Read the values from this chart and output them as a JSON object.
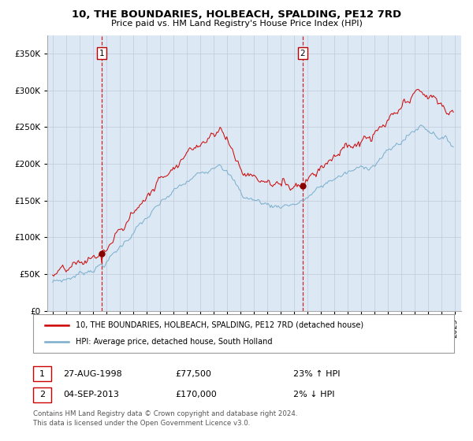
{
  "title": "10, THE BOUNDARIES, HOLBEACH, SPALDING, PE12 7RD",
  "subtitle": "Price paid vs. HM Land Registry's House Price Index (HPI)",
  "background_color": "#dce9f5",
  "red_line_color": "#cc0000",
  "blue_line_color": "#7aadcc",
  "marker_color": "#880000",
  "vline_color": "#cc0000",
  "purchase1_year": 1998.67,
  "purchase1_price": 77500,
  "purchase1_date": "27-AUG-1998",
  "purchase1_hpi_pct": "23% ↑ HPI",
  "purchase2_year": 2013.67,
  "purchase2_price": 170000,
  "purchase2_date": "04-SEP-2013",
  "purchase2_hpi_pct": "2% ↓ HPI",
  "legend1": "10, THE BOUNDARIES, HOLBEACH, SPALDING, PE12 7RD (detached house)",
  "legend2": "HPI: Average price, detached house, South Holland",
  "footnote1": "Contains HM Land Registry data © Crown copyright and database right 2024.",
  "footnote2": "This data is licensed under the Open Government Licence v3.0.",
  "ylim": [
    0,
    375000
  ],
  "yticks": [
    0,
    50000,
    100000,
    150000,
    200000,
    250000,
    300000,
    350000
  ],
  "ytick_labels": [
    "£0",
    "£50K",
    "£100K",
    "£150K",
    "£200K",
    "£250K",
    "£300K",
    "£350K"
  ],
  "xlim_start": 1994.6,
  "xlim_end": 2025.5
}
